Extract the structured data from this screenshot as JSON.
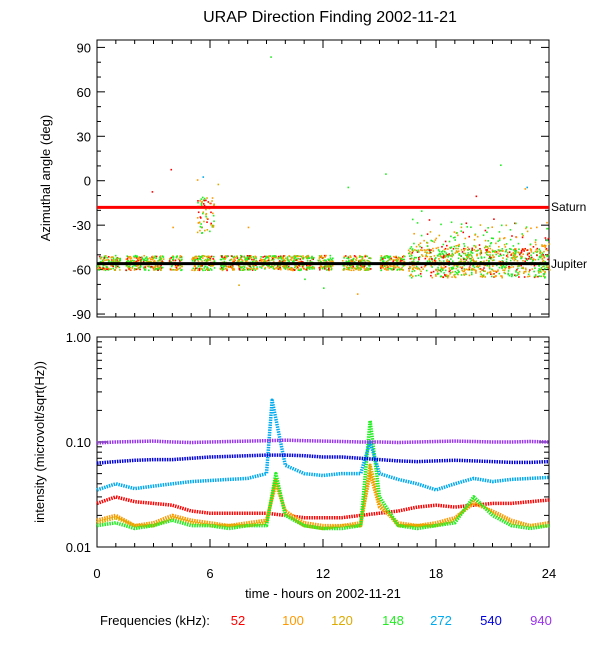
{
  "chart_data": [
    {
      "id": "azimuth",
      "type": "scatter",
      "title": "URAP Direction Finding  2002-11-21",
      "ylabel": "Azimuthal angle (deg)",
      "xlim": [
        0,
        24
      ],
      "ylim": [
        -92,
        95
      ],
      "yticks": [
        90,
        60,
        30,
        0,
        -30,
        -60,
        -90
      ],
      "reference_lines": [
        {
          "name": "Saturn",
          "value": -18,
          "color": "#ff0000"
        },
        {
          "name": "Jupiter",
          "value": -56,
          "color": "#000000"
        }
      ],
      "note": "Scattered points per frequency; most cluster between -45 and -65 deg, with a cluster near -15 to -25 deg around hour 5.5 and scattered outliers."
    },
    {
      "id": "intensity",
      "type": "line",
      "ylabel": "intensity (microvolt/sqrt(Hz))",
      "xlabel": "time - hours on 2002-11-21",
      "xlim": [
        0,
        24
      ],
      "xticks": [
        0,
        6,
        12,
        18,
        24
      ],
      "yscale": "log",
      "ylim": [
        0.01,
        1.0
      ],
      "yticks": [
        1.0,
        0.1,
        0.01
      ],
      "ytick_labels": [
        "1.00",
        "0.10",
        "0.01"
      ],
      "series": [
        {
          "name": "52",
          "color": "#ff0000",
          "x": [
            0,
            1,
            2,
            3,
            4,
            5,
            6,
            7,
            8,
            9,
            10,
            11,
            12,
            13,
            14,
            15,
            16,
            17,
            18,
            19,
            20,
            21,
            22,
            23,
            24
          ],
          "values": [
            0.026,
            0.03,
            0.027,
            0.026,
            0.025,
            0.022,
            0.021,
            0.021,
            0.021,
            0.021,
            0.02,
            0.019,
            0.019,
            0.019,
            0.02,
            0.021,
            0.022,
            0.024,
            0.025,
            0.024,
            0.025,
            0.026,
            0.026,
            0.027,
            0.028
          ]
        },
        {
          "name": "100",
          "color": "#ff9900",
          "x": [
            0,
            1,
            2,
            3,
            4,
            5,
            6,
            7,
            8,
            9,
            9.5,
            10,
            11,
            12,
            13,
            14,
            14.5,
            15,
            16,
            17,
            18,
            19,
            20,
            21,
            22,
            23,
            24
          ],
          "values": [
            0.018,
            0.02,
            0.016,
            0.017,
            0.02,
            0.018,
            0.017,
            0.016,
            0.017,
            0.018,
            0.04,
            0.022,
            0.017,
            0.016,
            0.016,
            0.017,
            0.05,
            0.024,
            0.017,
            0.016,
            0.017,
            0.019,
            0.026,
            0.022,
            0.018,
            0.016,
            0.017
          ]
        },
        {
          "name": "120",
          "color": "#ddaa00",
          "x": [
            0,
            1,
            2,
            3,
            4,
            5,
            6,
            7,
            8,
            9,
            9.5,
            10,
            11,
            12,
            13,
            14,
            14.5,
            15,
            16,
            17,
            18,
            19,
            20,
            21,
            22,
            23,
            24
          ],
          "values": [
            0.017,
            0.019,
            0.016,
            0.016,
            0.019,
            0.017,
            0.016,
            0.016,
            0.016,
            0.017,
            0.045,
            0.021,
            0.016,
            0.015,
            0.016,
            0.016,
            0.06,
            0.026,
            0.016,
            0.016,
            0.016,
            0.018,
            0.028,
            0.021,
            0.017,
            0.016,
            0.016
          ]
        },
        {
          "name": "148",
          "color": "#22ee22",
          "x": [
            0,
            1,
            2,
            3,
            4,
            5,
            6,
            7,
            8,
            9,
            9.5,
            10,
            11,
            12,
            13,
            14,
            14.5,
            15,
            16,
            17,
            18,
            19,
            20,
            21,
            22,
            23,
            24
          ],
          "values": [
            0.016,
            0.017,
            0.015,
            0.016,
            0.018,
            0.016,
            0.016,
            0.015,
            0.016,
            0.016,
            0.05,
            0.02,
            0.016,
            0.015,
            0.015,
            0.016,
            0.16,
            0.03,
            0.016,
            0.015,
            0.016,
            0.017,
            0.03,
            0.02,
            0.016,
            0.015,
            0.016
          ]
        },
        {
          "name": "272",
          "color": "#00aaee",
          "x": [
            0,
            1,
            2,
            3,
            4,
            5,
            6,
            7,
            8,
            9,
            9.3,
            10,
            11,
            12,
            13,
            14,
            14.5,
            15,
            16,
            17,
            18,
            19,
            20,
            21,
            22,
            23,
            24
          ],
          "values": [
            0.035,
            0.04,
            0.036,
            0.038,
            0.04,
            0.042,
            0.043,
            0.044,
            0.045,
            0.05,
            0.25,
            0.06,
            0.05,
            0.048,
            0.05,
            0.05,
            0.1,
            0.05,
            0.044,
            0.04,
            0.035,
            0.04,
            0.045,
            0.042,
            0.044,
            0.045,
            0.046
          ]
        },
        {
          "name": "540",
          "color": "#0000dd",
          "x": [
            0,
            1,
            2,
            3,
            4,
            5,
            6,
            7,
            8,
            9,
            10,
            11,
            12,
            13,
            14,
            15,
            16,
            17,
            18,
            19,
            20,
            21,
            22,
            23,
            24
          ],
          "values": [
            0.063,
            0.065,
            0.067,
            0.068,
            0.068,
            0.07,
            0.072,
            0.073,
            0.074,
            0.075,
            0.075,
            0.074,
            0.072,
            0.072,
            0.07,
            0.068,
            0.066,
            0.065,
            0.066,
            0.067,
            0.066,
            0.065,
            0.064,
            0.064,
            0.065
          ]
        },
        {
          "name": "940",
          "color": "#9933ee",
          "x": [
            0,
            1,
            2,
            3,
            4,
            5,
            6,
            7,
            8,
            9,
            10,
            11,
            12,
            13,
            14,
            15,
            16,
            17,
            18,
            19,
            20,
            21,
            22,
            23,
            24
          ],
          "values": [
            0.098,
            0.1,
            0.101,
            0.102,
            0.1,
            0.099,
            0.1,
            0.101,
            0.102,
            0.103,
            0.104,
            0.103,
            0.102,
            0.101,
            0.1,
            0.1,
            0.099,
            0.1,
            0.101,
            0.102,
            0.101,
            0.1,
            0.1,
            0.101,
            0.1
          ]
        }
      ]
    }
  ],
  "legend": {
    "label": "Frequencies (kHz):",
    "items": [
      {
        "text": "52",
        "color": "#ff0000"
      },
      {
        "text": "100",
        "color": "#ff9900"
      },
      {
        "text": "120",
        "color": "#ddaa00"
      },
      {
        "text": "148",
        "color": "#22ee22"
      },
      {
        "text": "272",
        "color": "#00aaee"
      },
      {
        "text": "540",
        "color": "#0000dd"
      },
      {
        "text": "940",
        "color": "#9933ee"
      }
    ]
  }
}
